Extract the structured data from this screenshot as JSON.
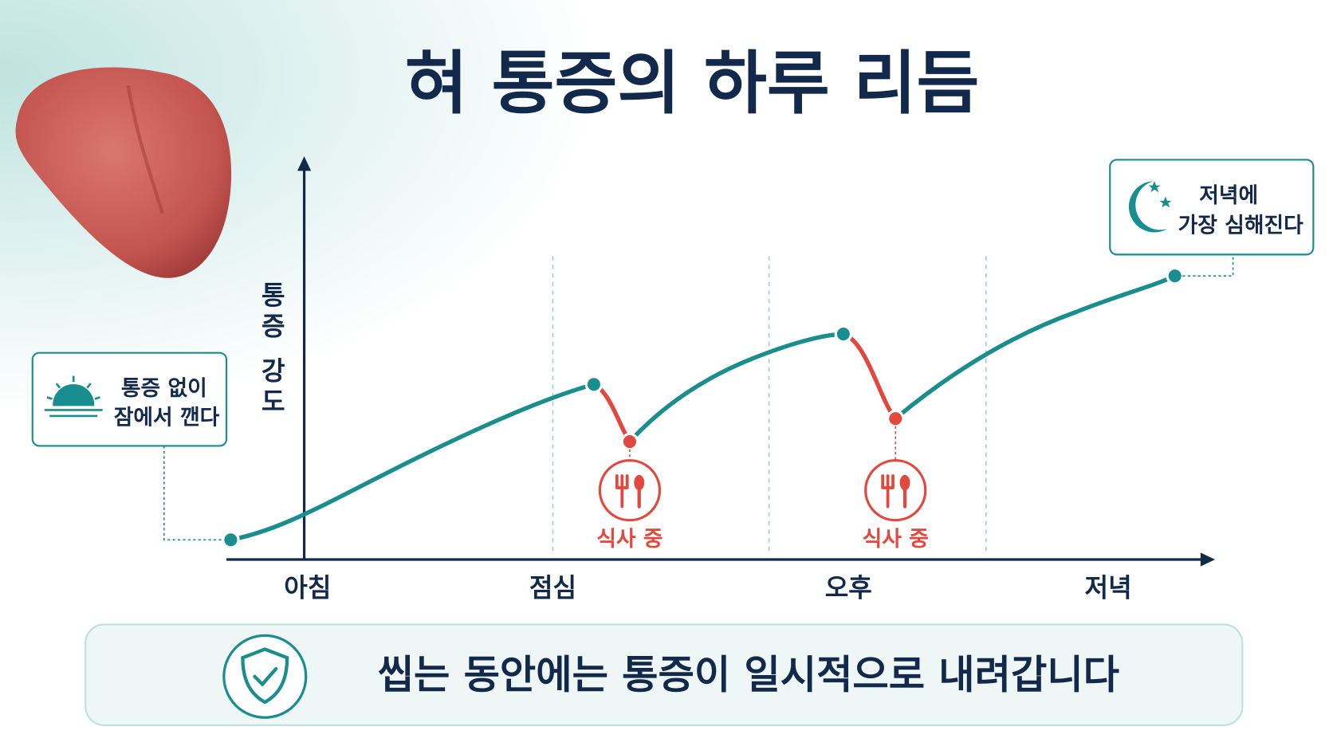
{
  "title": "혀 통증의 하루 리듬",
  "y_axis_label": "통증 강도",
  "x_labels": [
    "아침",
    "점심",
    "오후",
    "저녁"
  ],
  "callouts": {
    "morning": [
      "통증 없이",
      "잠에서 깬다"
    ],
    "evening": [
      "저녁에",
      "가장 심해진다"
    ]
  },
  "meal_labels": [
    "식사 중",
    "식사 중"
  ],
  "banner": "씹는 동안에는 통증이 일시적으로 내려갑니다"
}
